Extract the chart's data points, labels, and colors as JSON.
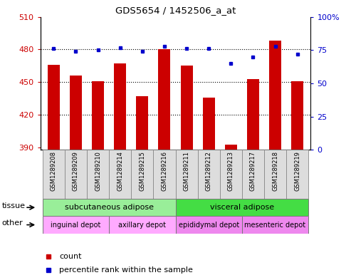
{
  "title": "GDS5654 / 1452506_a_at",
  "samples": [
    "GSM1289208",
    "GSM1289209",
    "GSM1289210",
    "GSM1289214",
    "GSM1289215",
    "GSM1289216",
    "GSM1289211",
    "GSM1289212",
    "GSM1289213",
    "GSM1289217",
    "GSM1289218",
    "GSM1289219"
  ],
  "counts": [
    466,
    456,
    451,
    467,
    437,
    480,
    465,
    436,
    393,
    453,
    488,
    451
  ],
  "percentiles": [
    76,
    74,
    75,
    77,
    74,
    78,
    76,
    76,
    65,
    70,
    78,
    72
  ],
  "ylim_left": [
    388,
    510
  ],
  "ylim_right": [
    0,
    100
  ],
  "yticks_left": [
    390,
    420,
    450,
    480,
    510
  ],
  "yticks_right": [
    0,
    25,
    50,
    75,
    100
  ],
  "bar_color": "#cc0000",
  "dot_color": "#0000cc",
  "bar_width": 0.55,
  "tissue_groups": [
    {
      "label": "subcutaneous adipose",
      "start": 0,
      "end": 5,
      "color": "#99ee99"
    },
    {
      "label": "visceral adipose",
      "start": 6,
      "end": 11,
      "color": "#44dd44"
    }
  ],
  "other_groups": [
    {
      "label": "inguinal depot",
      "start": 0,
      "end": 2,
      "color": "#ffaaff"
    },
    {
      "label": "axillary depot",
      "start": 3,
      "end": 5,
      "color": "#ffaaff"
    },
    {
      "label": "epididymal depot",
      "start": 6,
      "end": 8,
      "color": "#ee88ee"
    },
    {
      "label": "mesenteric depot",
      "start": 9,
      "end": 11,
      "color": "#ee88ee"
    }
  ],
  "tick_label_color_left": "#cc0000",
  "tick_label_color_right": "#0000cc",
  "sample_box_color": "#dddddd",
  "sample_box_edge": "#888888"
}
